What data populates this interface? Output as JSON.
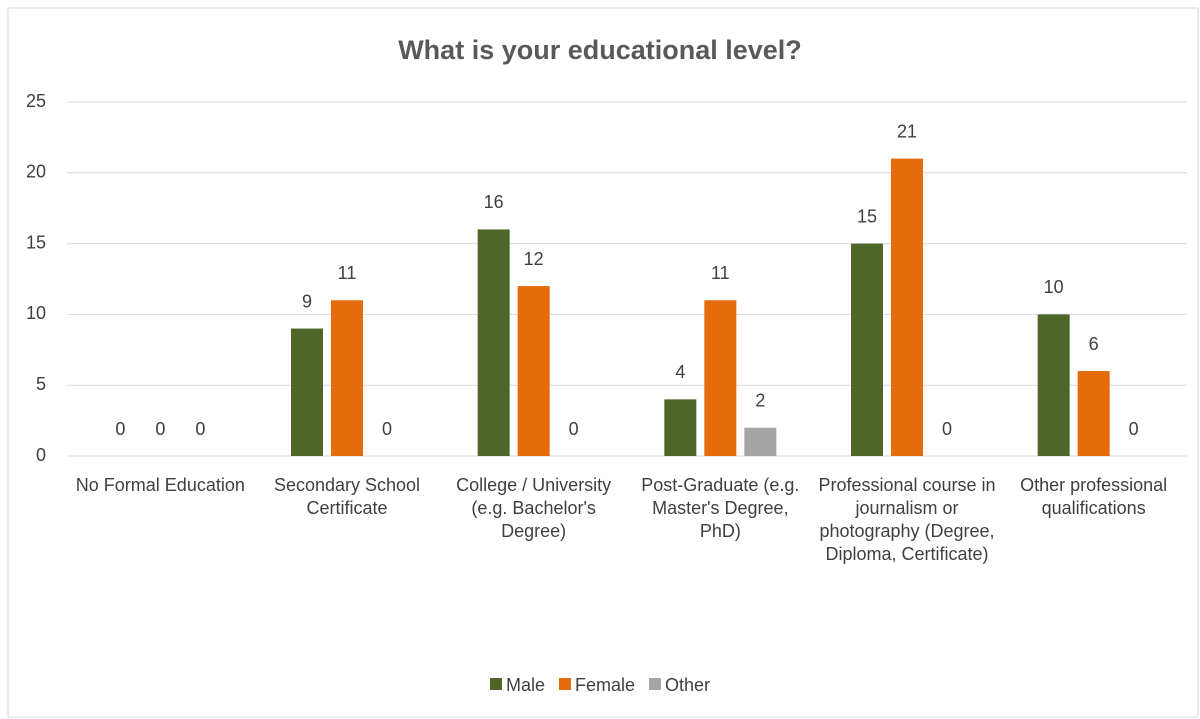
{
  "chart_data": {
    "type": "bar",
    "title": "What is your educational level?",
    "categories": [
      "No Formal Education",
      "Secondary School Certificate",
      "College / University (e.g. Bachelor's Degree)",
      "Post-Graduate (e.g. Master's Degree, PhD)",
      "Professional course  in journalism or photography (Degree, Diploma, Certificate)",
      "Other professional qualifications"
    ],
    "series": [
      {
        "name": "Male",
        "color": "#4e6628",
        "values": [
          0,
          9,
          16,
          4,
          15,
          10
        ]
      },
      {
        "name": "Female",
        "color": "#e46c0a",
        "values": [
          0,
          11,
          12,
          11,
          21,
          6
        ]
      },
      {
        "name": "Other",
        "color": "#a5a5a5",
        "values": [
          0,
          0,
          0,
          2,
          0,
          0
        ]
      }
    ],
    "ylim": [
      0,
      25
    ],
    "yticks": [
      0,
      5,
      10,
      15,
      20,
      25
    ],
    "grid": true,
    "data_labels": true,
    "legend": "bottom"
  }
}
